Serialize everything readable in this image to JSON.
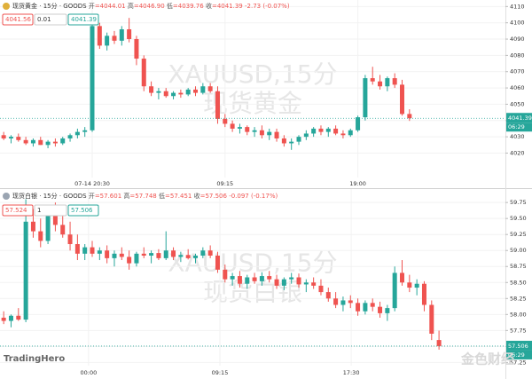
{
  "branding": {
    "logo": "TradingHero",
    "watermark": "金色财经"
  },
  "chart_data": [
    {
      "type": "candlestick",
      "symbol": "现货黄金",
      "interval": "15分",
      "source": "GOODS",
      "ohlc_labels": [
        "开",
        "高",
        "低",
        "收"
      ],
      "ohlc_values": [
        "=4044.01",
        "=4046.90",
        "=4039.76",
        "=4041.39"
      ],
      "change": "-2.73 (-0.07%)",
      "sell_price": "4041.56",
      "quantity": "0.01",
      "buy_price": "4041.39",
      "watermark": [
        "XAUUSD,15分",
        "现货黄金"
      ],
      "price_line": 4041.39,
      "countdown": "06:29",
      "up_color": "#26a69a",
      "down_color": "#ef5350",
      "grid": true,
      "ylim": [
        4005,
        4114
      ],
      "yticks": [
        4020,
        4030,
        4040,
        4050,
        4060,
        4070,
        4080,
        4090,
        4100,
        4110
      ],
      "xlim": [
        -0.5,
        68
      ],
      "xticks": [
        {
          "value": 12,
          "label": "07-14 20:30"
        },
        {
          "value": 30,
          "label": "09:15"
        },
        {
          "value": 48,
          "label": "19:00"
        }
      ],
      "open": [
        4031,
        4029,
        4030,
        4028,
        4026,
        4028,
        4025,
        4027,
        4026,
        4029,
        4031,
        4033,
        4034,
        4098,
        4086,
        4092,
        4089,
        4096,
        4090,
        4078,
        4061,
        4057,
        4058,
        4055,
        4057,
        4056,
        4059,
        4057,
        4061,
        4058,
        4041,
        4038,
        4035,
        4036,
        4033,
        4034,
        4031,
        4033,
        4029,
        4026,
        4027,
        4030,
        4032,
        4035,
        4033,
        4035,
        4032,
        4031,
        4034,
        4042,
        4066,
        4064,
        4061,
        4066,
        4062,
        4044.01
      ],
      "high": [
        4033,
        4031,
        4032,
        4030,
        4029,
        4030,
        4028,
        4029,
        4030,
        4032,
        4035,
        4036,
        4102,
        4100,
        4094,
        4095,
        4098,
        4103,
        4092,
        4080,
        4064,
        4060,
        4060,
        4058,
        4059,
        4060,
        4061,
        4063,
        4063,
        4061,
        4044,
        4040,
        4038,
        4037,
        4036,
        4037,
        4035,
        4035,
        4031,
        4029,
        4031,
        4034,
        4036,
        4037,
        4036,
        4037,
        4034,
        4035,
        4043,
        4068,
        4073,
        4068,
        4067,
        4069,
        4065,
        4046.9
      ],
      "low": [
        4028,
        4026,
        4027,
        4025,
        4024,
        4025,
        4023,
        4024,
        4025,
        4027,
        4029,
        4030,
        4033,
        4084,
        4083,
        4087,
        4086,
        4088,
        4074,
        4058,
        4055,
        4053,
        4054,
        4053,
        4054,
        4055,
        4055,
        4056,
        4057,
        4038,
        4036,
        4033,
        4032,
        4031,
        4030,
        4029,
        4028,
        4027,
        4024,
        4022,
        4025,
        4028,
        4030,
        4031,
        4030,
        4031,
        4029,
        4030,
        4033,
        4040,
        4062,
        4059,
        4058,
        4060,
        4043,
        4039.76
      ],
      "close": [
        4029,
        4030,
        4028,
        4026,
        4028,
        4025,
        4027,
        4026,
        4029,
        4031,
        4033,
        4034,
        4098,
        4086,
        4092,
        4089,
        4096,
        4090,
        4078,
        4061,
        4057,
        4058,
        4055,
        4057,
        4056,
        4059,
        4057,
        4061,
        4058,
        4041,
        4038,
        4035,
        4036,
        4033,
        4034,
        4031,
        4033,
        4029,
        4026,
        4027,
        4030,
        4032,
        4035,
        4033,
        4035,
        4032,
        4031,
        4034,
        4042,
        4066,
        4064,
        4061,
        4066,
        4062,
        4044,
        4041.39
      ]
    },
    {
      "type": "candlestick",
      "symbol": "现货白银",
      "interval": "15分",
      "source": "GOODS",
      "ohlc_labels": [
        "开",
        "高",
        "低",
        "收"
      ],
      "ohlc_values": [
        "=57.601",
        "=57.748",
        "=57.451",
        "=57.506"
      ],
      "change": "-0.097 (-0.17%)",
      "sell_price": "57.524",
      "quantity": "1",
      "buy_price": "57.506",
      "watermark": [
        "XAUUSD,15分",
        "现货白银"
      ],
      "price_line": 57.506,
      "countdown": "06:29",
      "up_color": "#26a69a",
      "down_color": "#ef5350",
      "grid": true,
      "ylim": [
        57.2,
        59.96
      ],
      "yticks": [
        57.25,
        57.5,
        57.75,
        58,
        58.25,
        58.5,
        58.75,
        59,
        59.25,
        59.5,
        59.75
      ],
      "ytick_labels": [
        "57.25",
        "57.50",
        "57.75",
        "58.00",
        "58.25",
        "58.50",
        "58.75",
        "59.00",
        "59.25",
        "59.50",
        "59.75"
      ],
      "xlim": [
        -0.5,
        68
      ],
      "xticks": [
        {
          "value": 11.5,
          "label": "00:00"
        },
        {
          "value": 29.3,
          "label": "09:15"
        },
        {
          "value": 47.1,
          "label": "17:30"
        }
      ],
      "open": [
        57.95,
        57.9,
        57.98,
        57.92,
        59.45,
        59.3,
        59.15,
        59.55,
        59.4,
        59.25,
        59.1,
        58.95,
        59.05,
        58.95,
        59.0,
        58.88,
        58.95,
        58.9,
        58.8,
        58.95,
        58.92,
        58.96,
        58.88,
        59.0,
        58.9,
        58.93,
        58.88,
        58.92,
        59.0,
        58.92,
        58.7,
        58.55,
        58.6,
        58.48,
        58.58,
        58.52,
        58.6,
        58.55,
        58.45,
        58.55,
        58.58,
        58.47,
        58.5,
        58.45,
        58.35,
        58.25,
        58.15,
        58.22,
        58.18,
        58.05,
        58.18,
        58.12,
        58.02,
        58.1,
        58.65,
        58.5,
        58.42,
        58.48,
        58.15,
        57.601
      ],
      "high": [
        58.05,
        58.0,
        58.1,
        59.8,
        59.65,
        59.5,
        59.7,
        59.75,
        59.6,
        59.45,
        59.25,
        59.1,
        59.15,
        59.05,
        59.08,
        59.0,
        59.05,
        59.0,
        58.98,
        59.05,
        59.0,
        59.02,
        59.3,
        59.05,
        58.98,
        59.02,
        58.95,
        59.05,
        59.08,
        58.98,
        58.78,
        58.65,
        58.68,
        58.62,
        58.65,
        58.66,
        58.68,
        58.62,
        58.58,
        58.65,
        58.64,
        58.55,
        58.58,
        58.55,
        58.42,
        58.35,
        58.28,
        58.3,
        58.25,
        58.22,
        58.25,
        58.2,
        58.15,
        58.75,
        58.85,
        58.62,
        58.55,
        58.52,
        58.22,
        57.748
      ],
      "low": [
        57.85,
        57.8,
        57.9,
        57.88,
        59.2,
        59.05,
        59.1,
        59.3,
        59.2,
        59.0,
        58.85,
        58.85,
        58.9,
        58.85,
        58.8,
        58.75,
        58.85,
        58.7,
        58.75,
        58.88,
        58.8,
        58.85,
        58.85,
        58.85,
        58.82,
        58.86,
        58.8,
        58.88,
        58.88,
        58.65,
        58.5,
        58.45,
        58.42,
        58.4,
        58.48,
        58.45,
        58.5,
        58.4,
        58.38,
        58.48,
        58.42,
        58.35,
        58.4,
        58.3,
        58.2,
        58.1,
        58.05,
        58.1,
        57.98,
        58.0,
        58.05,
        57.95,
        57.9,
        58.05,
        58.45,
        58.35,
        58.3,
        58.05,
        57.6,
        57.451
      ],
      "close": [
        57.9,
        57.98,
        57.92,
        59.45,
        59.3,
        59.15,
        59.55,
        59.4,
        59.25,
        59.1,
        58.95,
        59.05,
        58.95,
        59.0,
        58.88,
        58.95,
        58.9,
        58.8,
        58.95,
        58.92,
        58.96,
        58.88,
        59.0,
        58.9,
        58.93,
        58.88,
        58.92,
        59.0,
        58.92,
        58.7,
        58.55,
        58.6,
        58.48,
        58.58,
        58.52,
        58.6,
        58.55,
        58.45,
        58.55,
        58.58,
        58.47,
        58.5,
        58.45,
        58.35,
        58.25,
        58.15,
        58.22,
        58.18,
        58.05,
        58.18,
        58.12,
        58.02,
        58.1,
        58.65,
        58.5,
        58.42,
        58.48,
        58.15,
        57.7,
        57.506
      ]
    }
  ]
}
